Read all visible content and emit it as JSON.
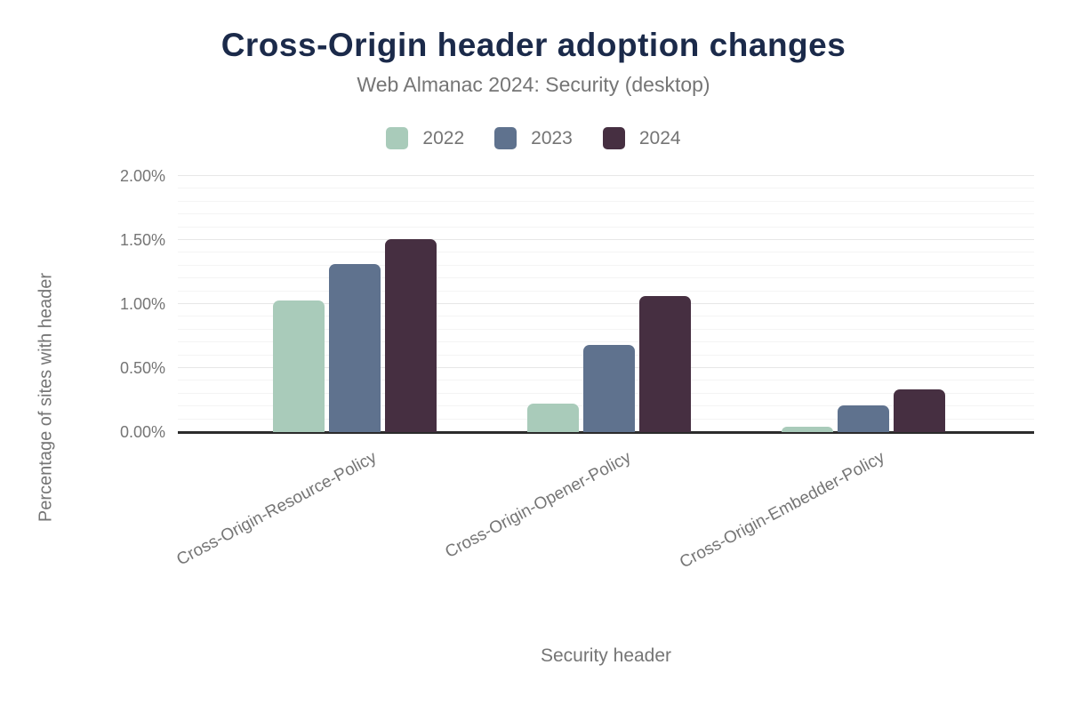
{
  "chart_data": {
    "type": "bar",
    "title": "Cross-Origin header adoption changes",
    "subtitle": "Web Almanac 2024: Security (desktop)",
    "xlabel": "Security header",
    "ylabel": "Percentage of sites with header",
    "categories": [
      "Cross-Origin-Resource-Policy",
      "Cross-Origin-Opener-Policy",
      "Cross-Origin-Embedder-Policy"
    ],
    "series": [
      {
        "name": "2022",
        "color": "#a9cbba",
        "values": [
          1.03,
          0.22,
          0.04
        ]
      },
      {
        "name": "2023",
        "color": "#5f728e",
        "values": [
          1.31,
          0.68,
          0.21
        ]
      },
      {
        "name": "2024",
        "color": "#462f41",
        "values": [
          1.51,
          1.06,
          0.33
        ]
      }
    ],
    "value_unit": "%",
    "ylim": [
      0,
      2.0
    ],
    "yticks": [
      {
        "label": "0.00%",
        "value": 0.0
      },
      {
        "label": "0.50%",
        "value": 0.5
      },
      {
        "label": "1.00%",
        "value": 1.0
      },
      {
        "label": "1.50%",
        "value": 1.5
      },
      {
        "label": "2.00%",
        "value": 2.0
      }
    ],
    "y_minor_step": 0.1,
    "y_major_step": 0.5,
    "grid": "horizontal",
    "legend_position": "top-center"
  },
  "colors": {
    "title_text": "#1b2a4a",
    "muted_text": "#757575",
    "grid_minor": "#f4f4f4",
    "grid_major": "#e7e7e7",
    "axis_line": "#2b2b2b",
    "background": "#ffffff"
  }
}
